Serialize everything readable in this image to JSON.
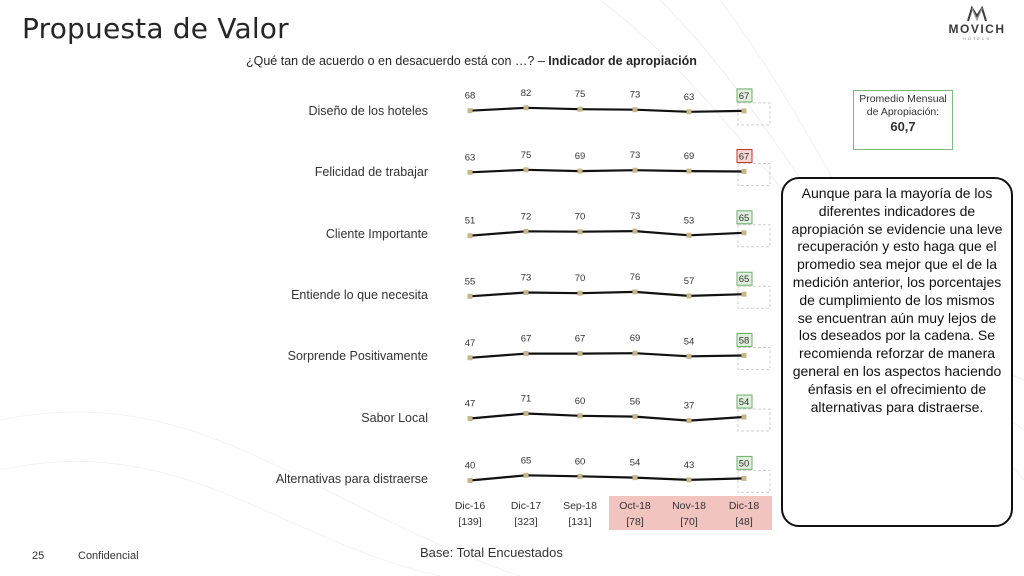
{
  "slide": {
    "title": "Propuesta de Valor",
    "subtitle_question": "¿Qué tan de acuerdo o en desacuerdo está con …? –",
    "subtitle_bold": "Indicador de apropiación",
    "logo_text": "MOVICH",
    "logo_subtext": "HOTELS",
    "page_number": "25",
    "confidential": "Confidencial",
    "base": "Base: Total Encuestados"
  },
  "average_box": {
    "label": "Promedio Mensual de Apropiación:",
    "value": "60,7"
  },
  "callout": {
    "text": "Aunque para la mayoría de los diferentes indicadores de apropiación se evidencie una leve recuperación y esto haga que el promedio sea mejor que el de la medición anterior, los porcentajes de cumplimiento de los mismos se encuentran aún muy lejos de los deseados por la cadena. Se recomienda reforzar de manera general en los aspectos haciendo énfasis en el ofrecimiento de alternativas para distraerse."
  },
  "colors": {
    "line": "#111111",
    "marker": "#c8b68a",
    "box_green_border": "#6fae6d",
    "box_green_fill": "#dff0dc",
    "box_red_border": "#c0392b",
    "box_red_fill": "#f6d6d3",
    "highlight_period": "#f2c4c0"
  },
  "chart_data": {
    "type": "line",
    "categories": [
      "Dic-16",
      "Dic-17",
      "Sep-18",
      "Oct-18",
      "Nov-18",
      "Dic-18"
    ],
    "bases": [
      "[139]",
      "[323]",
      "[131]",
      "[78]",
      "[70]",
      "[48]"
    ],
    "highlighted_categories": [
      "Oct-18",
      "Nov-18",
      "Dic-18"
    ],
    "series": [
      {
        "name": "Diseño de los hoteles",
        "values": [
          68,
          82,
          75,
          73,
          63,
          67
        ],
        "last_box": "green"
      },
      {
        "name": "Felicidad de trabajar",
        "values": [
          63,
          75,
          69,
          73,
          69,
          67
        ],
        "last_box": "red"
      },
      {
        "name": "Cliente Importante",
        "values": [
          51,
          72,
          70,
          73,
          53,
          65
        ],
        "last_box": "green"
      },
      {
        "name": "Entiende lo que necesita",
        "values": [
          55,
          73,
          70,
          76,
          57,
          65
        ],
        "last_box": "green"
      },
      {
        "name": "Sorprende Positivamente",
        "values": [
          47,
          67,
          67,
          69,
          54,
          58
        ],
        "last_box": "green"
      },
      {
        "name": "Sabor Local",
        "values": [
          47,
          71,
          60,
          56,
          37,
          54
        ],
        "last_box": "green"
      },
      {
        "name": "Alternativas para distraerse",
        "values": [
          40,
          65,
          60,
          54,
          43,
          50
        ],
        "last_box": "green"
      }
    ]
  }
}
